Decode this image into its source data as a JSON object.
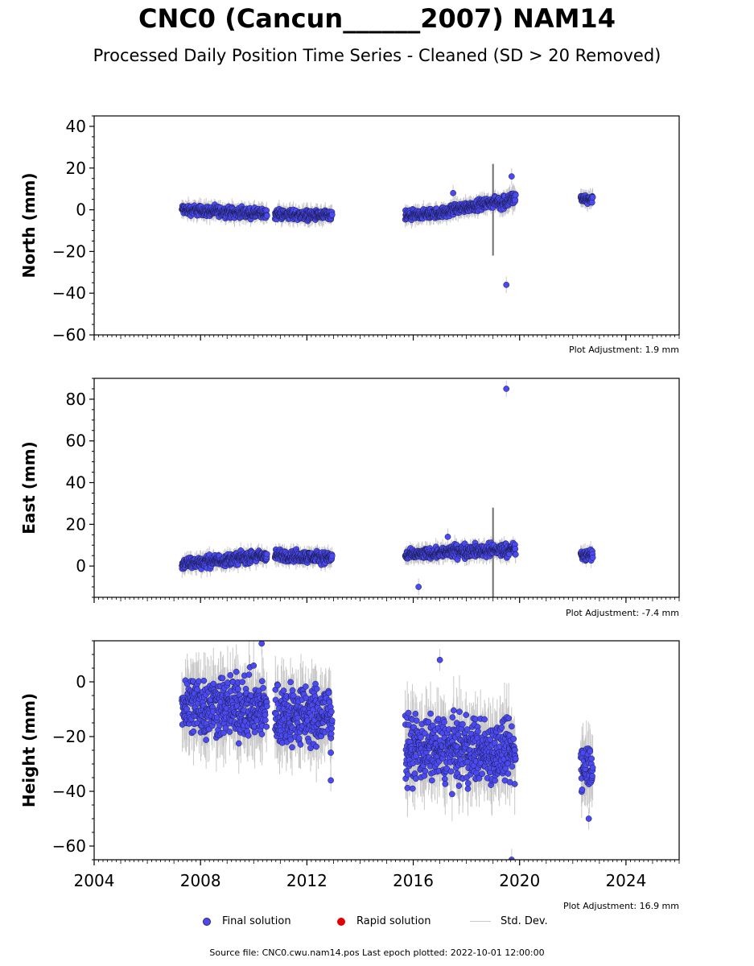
{
  "title": "CNC0 (Cancun______2007) NAM14",
  "subtitle": "Processed Daily Position Time Series - Cleaned (SD > 20 Removed)",
  "legend": {
    "final": "Final solution",
    "rapid": "Rapid solution",
    "std": "Std. Dev."
  },
  "colors": {
    "final": "#4a4af0",
    "final_edge": "#1b1b50",
    "rapid": "#e00000",
    "std": "#c8c8c8",
    "std_dense": "#6e6e6e"
  },
  "footer": "Source file: CNC0.cwu.nam14.pos  Last epoch plotted: 2022-10-01 12:00:00",
  "chart_data": [
    {
      "type": "scatter",
      "ylabel": "North (mm)",
      "ylim": [
        -60,
        45
      ],
      "yticks": [
        -60,
        -40,
        -20,
        0,
        20,
        40
      ],
      "xlim": [
        2004,
        2026
      ],
      "xtick_labels_shown": false,
      "adjustment": "Plot Adjustment: 1.9 mm",
      "segments": [
        {
          "x": [
            2007.3,
            2010.5
          ],
          "y": [
            0,
            -2
          ],
          "spread": 3.5,
          "sd": 3
        },
        {
          "x": [
            2010.8,
            2012.95
          ],
          "y": [
            -2,
            -3
          ],
          "spread": 3.5,
          "sd": 3
        },
        {
          "x": [
            2015.7,
            2017.4
          ],
          "y": [
            -3,
            -1
          ],
          "spread": 3.5,
          "sd": 3
        },
        {
          "x": [
            2017.4,
            2019.25
          ],
          "y": [
            0,
            4
          ],
          "spread": 3.5,
          "sd": 3
        },
        {
          "x": [
            2019.25,
            2019.85
          ],
          "y": [
            3,
            6
          ],
          "spread": 5,
          "sd": 4
        },
        {
          "x": [
            2022.3,
            2022.75
          ],
          "y": [
            5,
            5
          ],
          "spread": 3,
          "sd": 3
        }
      ],
      "outliers": [
        [
          2019.5,
          -36
        ],
        [
          2019.7,
          16
        ],
        [
          2017.5,
          8
        ]
      ],
      "sd_spikes": [
        [
          2019.0,
          22
        ]
      ]
    },
    {
      "type": "scatter",
      "ylabel": "East (mm)",
      "ylim": [
        -15,
        90
      ],
      "yticks": [
        0,
        20,
        40,
        60,
        80
      ],
      "xlim": [
        2004,
        2026
      ],
      "xtick_labels_shown": false,
      "adjustment": "Plot Adjustment: -7.4 mm",
      "segments": [
        {
          "x": [
            2007.3,
            2010.5
          ],
          "y": [
            1,
            5
          ],
          "spread": 4,
          "sd": 3
        },
        {
          "x": [
            2010.8,
            2012.95
          ],
          "y": [
            5,
            4
          ],
          "spread": 4,
          "sd": 3
        },
        {
          "x": [
            2015.7,
            2017.4
          ],
          "y": [
            5,
            7
          ],
          "spread": 3.5,
          "sd": 3
        },
        {
          "x": [
            2017.4,
            2019.85
          ],
          "y": [
            7,
            8
          ],
          "spread": 4.5,
          "sd": 3
        },
        {
          "x": [
            2022.3,
            2022.75
          ],
          "y": [
            5,
            5
          ],
          "spread": 3.5,
          "sd": 3
        }
      ],
      "outliers": [
        [
          2019.5,
          85
        ],
        [
          2016.2,
          -10
        ],
        [
          2017.3,
          14
        ]
      ],
      "sd_spikes": [
        [
          2019.0,
          28
        ]
      ]
    },
    {
      "type": "scatter",
      "ylabel": "Height (mm)",
      "ylim": [
        -65,
        15
      ],
      "yticks": [
        -60,
        -40,
        -20,
        0
      ],
      "xlim": [
        2004,
        2026
      ],
      "xtick_labels_shown": true,
      "xticks": [
        2004,
        2008,
        2012,
        2016,
        2020,
        2024
      ],
      "adjustment": "Plot Adjustment: 16.9 mm",
      "segments": [
        {
          "x": [
            2007.3,
            2010.5
          ],
          "y": [
            -8,
            -10
          ],
          "spread": 17,
          "sd": 9
        },
        {
          "x": [
            2010.8,
            2012.95
          ],
          "y": [
            -12,
            -13
          ],
          "spread": 17,
          "sd": 9
        },
        {
          "x": [
            2015.7,
            2019.85
          ],
          "y": [
            -24,
            -26
          ],
          "spread": 17,
          "sd": 9
        },
        {
          "x": [
            2022.3,
            2022.75
          ],
          "y": [
            -30,
            -30
          ],
          "spread": 12,
          "sd": 8
        }
      ],
      "outliers": [
        [
          2010.3,
          14
        ],
        [
          2017.0,
          8
        ],
        [
          2019.7,
          -65
        ],
        [
          2022.6,
          -50
        ],
        [
          2012.9,
          -36
        ]
      ],
      "sd_spikes": []
    }
  ]
}
